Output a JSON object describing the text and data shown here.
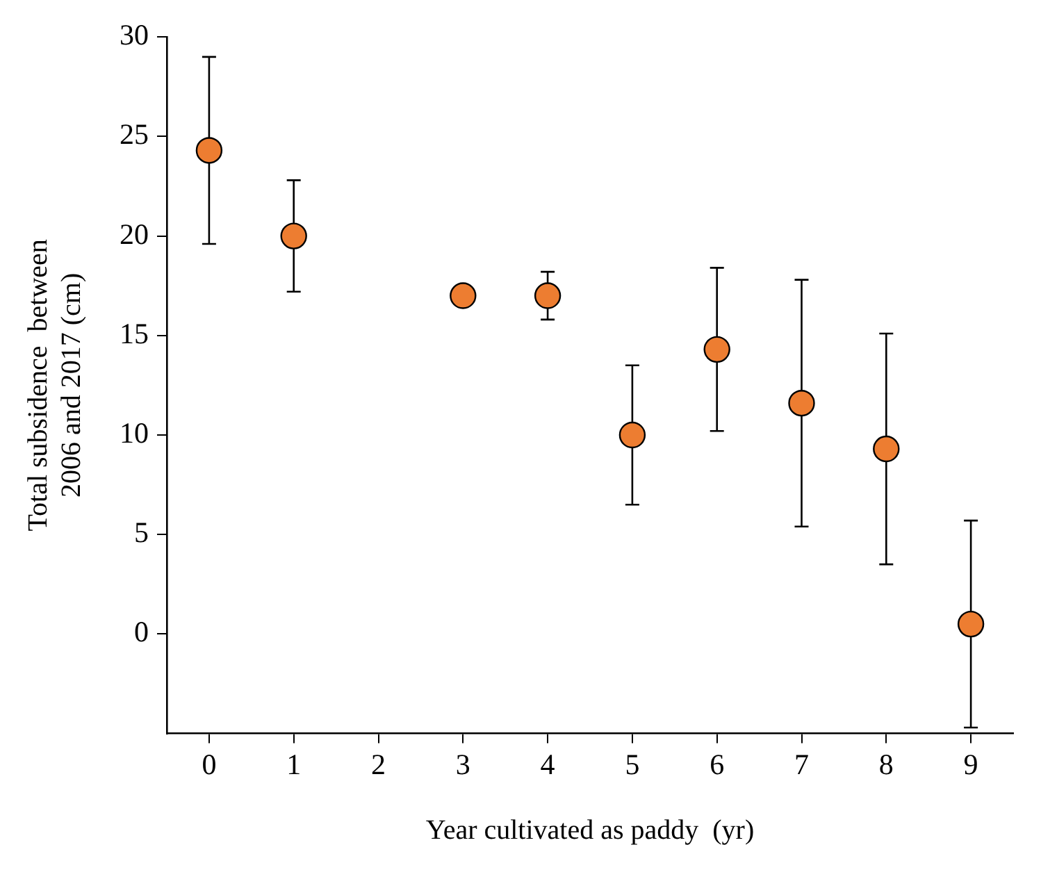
{
  "chart_data": {
    "type": "scatter",
    "xlabel": "Year cultivated as paddy  (yr)",
    "ylabel": "Total subsidence  between\n2006 and 2017 (cm)",
    "categories": [
      "0",
      "1",
      "2",
      "3",
      "4",
      "5",
      "6",
      "7",
      "8",
      "9"
    ],
    "series": [
      {
        "color": "#ed7d31",
        "values": [
          24.3,
          20.0,
          null,
          17.0,
          17.0,
          10.0,
          14.3,
          11.6,
          9.3,
          0.5
        ],
        "errors": [
          4.7,
          2.8,
          null,
          null,
          1.2,
          3.5,
          4.1,
          6.2,
          5.8,
          5.2
        ]
      }
    ],
    "ylim": [
      -5,
      30
    ],
    "yticks": [
      0,
      5,
      10,
      15,
      20,
      25,
      30
    ],
    "marker": "circle"
  }
}
